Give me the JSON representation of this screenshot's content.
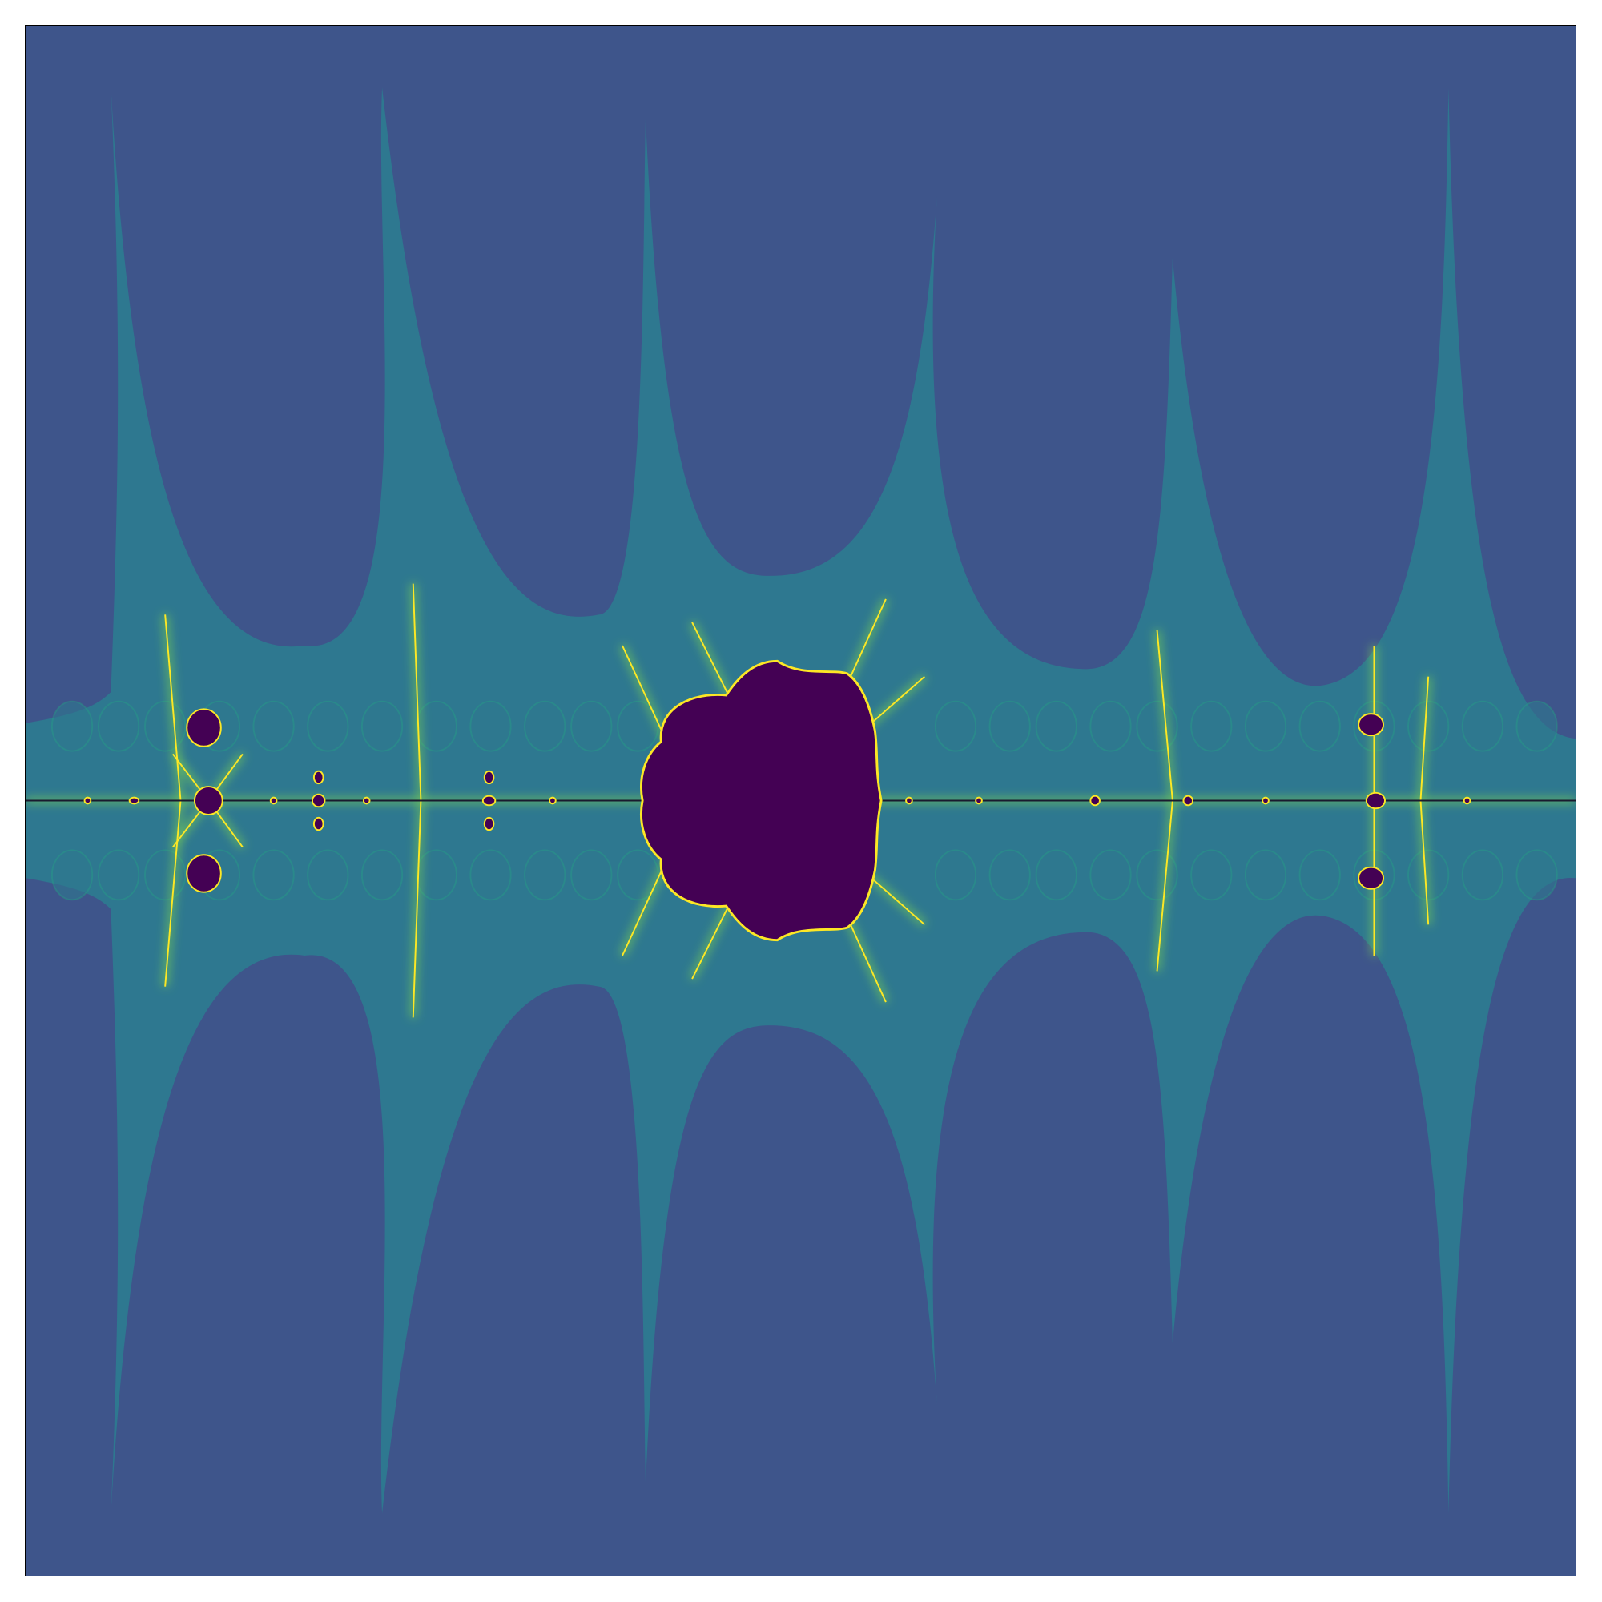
{
  "image": {
    "kind": "fractal escape-time plot",
    "colors": {
      "page_background": "#ffffff",
      "frame_border": "#000000",
      "outer_region": "#3e558b",
      "band_region": "#2e7890",
      "inner_set": "#440154",
      "filament_mid": "#23a884",
      "filament_bright": "#7ad151",
      "filament_hot": "#fde725",
      "axis_line": "#1a1a2e"
    }
  }
}
